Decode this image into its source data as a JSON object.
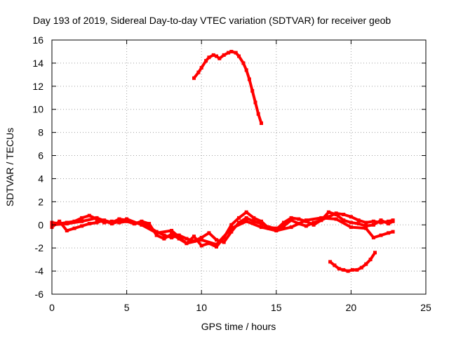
{
  "chart_data": {
    "type": "scatter",
    "title": "Day 193 of 2019, Sidereal Day-to-day VTEC variation (SDTVAR) for receiver geob",
    "xlabel": "GPS time / hours",
    "ylabel": "SDTVAR / TECUs",
    "xlim": [
      0,
      25
    ],
    "ylim": [
      -6,
      16
    ],
    "xticks": [
      0,
      5,
      10,
      15,
      20,
      25
    ],
    "yticks": [
      -6,
      -4,
      -2,
      0,
      2,
      4,
      6,
      8,
      10,
      12,
      14,
      16
    ],
    "grid": true,
    "marker_color": "#ff0000",
    "series": [
      {
        "name": "band-a",
        "points": [
          [
            0,
            0.2
          ],
          [
            0.5,
            0.1
          ],
          [
            1,
            0.2
          ],
          [
            1.5,
            0.3
          ],
          [
            2,
            0.6
          ],
          [
            2.5,
            0.8
          ],
          [
            3,
            0.5
          ],
          [
            3.5,
            0.2
          ],
          [
            4,
            0.3
          ],
          [
            4.5,
            0.2
          ],
          [
            5,
            0.3
          ],
          [
            5.5,
            0.1
          ],
          [
            6,
            0.2
          ],
          [
            6.5,
            -0.2
          ],
          [
            7,
            -0.6
          ],
          [
            7.5,
            -0.9
          ],
          [
            8,
            -1.1
          ],
          [
            8.5,
            -0.9
          ],
          [
            9,
            -1.2
          ],
          [
            9.5,
            -1.4
          ],
          [
            10,
            -1.1
          ],
          [
            10.5,
            -0.7
          ],
          [
            11,
            -1.3
          ],
          [
            11.5,
            -1.5
          ],
          [
            12,
            -0.6
          ],
          [
            12.5,
            0.2
          ],
          [
            13,
            0.6
          ],
          [
            13.5,
            0.3
          ],
          [
            14,
            0.1
          ],
          [
            14.5,
            -0.2
          ],
          [
            15,
            -0.3
          ],
          [
            15.5,
            -0.1
          ],
          [
            16,
            0.4
          ],
          [
            16.5,
            0.1
          ],
          [
            17,
            -0.1
          ],
          [
            17.5,
            0.2
          ],
          [
            18,
            0.4
          ],
          [
            18.5,
            0.7
          ],
          [
            19,
            1.0
          ],
          [
            19.5,
            0.9
          ],
          [
            20,
            0.7
          ],
          [
            20.5,
            0.4
          ],
          [
            21,
            0.2
          ],
          [
            21.5,
            0.3
          ],
          [
            22,
            0.2
          ],
          [
            22.5,
            0.3
          ],
          [
            22.8,
            0.4
          ]
        ]
      },
      {
        "name": "band-b",
        "points": [
          [
            0,
            -0.2
          ],
          [
            0.5,
            0.3
          ],
          [
            1,
            -0.5
          ],
          [
            1.5,
            -0.3
          ],
          [
            2,
            -0.1
          ],
          [
            2.5,
            0.1
          ],
          [
            3,
            0.2
          ],
          [
            3.5,
            0.4
          ],
          [
            4,
            0.2
          ],
          [
            4.5,
            0.5
          ],
          [
            5,
            0.4
          ],
          [
            5.5,
            0.1
          ],
          [
            6,
            0.3
          ],
          [
            6.5,
            0.1
          ],
          [
            7,
            -0.9
          ],
          [
            7.5,
            -1.2
          ],
          [
            8,
            -0.8
          ],
          [
            8.5,
            -1.2
          ],
          [
            9,
            -1.6
          ],
          [
            9.5,
            -1.0
          ],
          [
            10,
            -1.8
          ],
          [
            10.5,
            -1.6
          ],
          [
            11,
            -1.9
          ],
          [
            11.5,
            -1.1
          ],
          [
            12,
            0.0
          ],
          [
            12.5,
            0.6
          ],
          [
            13,
            1.1
          ],
          [
            13.5,
            0.6
          ],
          [
            14,
            0.3
          ],
          [
            14.5,
            -0.3
          ],
          [
            15,
            -0.4
          ],
          [
            15.5,
            0.2
          ],
          [
            16,
            0.6
          ],
          [
            16.5,
            0.5
          ],
          [
            17,
            0.3
          ],
          [
            17.5,
            0.0
          ],
          [
            18,
            0.4
          ],
          [
            18.5,
            1.1
          ],
          [
            19,
            0.9
          ],
          [
            19.5,
            0.4
          ],
          [
            20,
            0.2
          ],
          [
            20.5,
            0.1
          ],
          [
            21,
            -0.1
          ],
          [
            21.5,
            0.0
          ],
          [
            22,
            0.4
          ],
          [
            22.5,
            0.1
          ],
          [
            22.8,
            0.3
          ]
        ]
      },
      {
        "name": "band-c",
        "points": [
          [
            0,
            0.0
          ],
          [
            1,
            0.1
          ],
          [
            2,
            0.3
          ],
          [
            3,
            0.6
          ],
          [
            4,
            0.1
          ],
          [
            5,
            0.5
          ],
          [
            6,
            0.0
          ],
          [
            7,
            -0.7
          ],
          [
            8,
            -0.5
          ],
          [
            9,
            -1.6
          ],
          [
            10,
            -1.3
          ],
          [
            11,
            -1.7
          ],
          [
            12,
            -0.3
          ],
          [
            13,
            0.3
          ],
          [
            14,
            -0.2
          ],
          [
            15,
            -0.5
          ],
          [
            16,
            -0.2
          ],
          [
            17,
            0.4
          ],
          [
            18,
            0.6
          ],
          [
            19,
            0.5
          ],
          [
            20,
            -0.2
          ],
          [
            21,
            -0.3
          ],
          [
            21.5,
            -1.1
          ],
          [
            22,
            -0.9
          ],
          [
            22.5,
            -0.7
          ],
          [
            22.8,
            -0.6
          ]
        ]
      },
      {
        "name": "arc-upper",
        "points": [
          [
            9.5,
            12.7
          ],
          [
            9.8,
            13.2
          ],
          [
            10.0,
            13.6
          ],
          [
            10.3,
            14.2
          ],
          [
            10.5,
            14.5
          ],
          [
            10.8,
            14.7
          ],
          [
            11.0,
            14.6
          ],
          [
            11.2,
            14.4
          ],
          [
            11.5,
            14.7
          ],
          [
            11.8,
            14.9
          ],
          [
            12.0,
            15.0
          ],
          [
            12.3,
            14.9
          ],
          [
            12.5,
            14.6
          ],
          [
            12.8,
            14.0
          ],
          [
            13.0,
            13.4
          ],
          [
            13.2,
            12.6
          ],
          [
            13.4,
            11.6
          ],
          [
            13.6,
            10.6
          ],
          [
            13.8,
            9.6
          ],
          [
            14.0,
            8.8
          ]
        ]
      },
      {
        "name": "arc-lower",
        "points": [
          [
            18.6,
            -3.2
          ],
          [
            18.9,
            -3.5
          ],
          [
            19.2,
            -3.8
          ],
          [
            19.5,
            -3.9
          ],
          [
            19.8,
            -4.0
          ],
          [
            20.1,
            -3.9
          ],
          [
            20.4,
            -3.9
          ],
          [
            20.7,
            -3.7
          ],
          [
            21.0,
            -3.4
          ],
          [
            21.3,
            -3.0
          ],
          [
            21.6,
            -2.4
          ]
        ]
      }
    ]
  }
}
